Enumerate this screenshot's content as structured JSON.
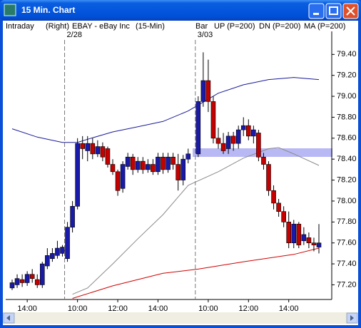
{
  "window": {
    "title": "15 Min. Chart"
  },
  "header": {
    "mode": "Intraday",
    "axis_side": "(Right)",
    "symbol": "EBAY - eBay Inc",
    "interval": "(15-Min)",
    "style": "Bar"
  },
  "chart_data": {
    "type": "candlestick",
    "dates": [
      {
        "value": 11,
        "label": "2/28"
      },
      {
        "value": 36,
        "label": "3/03"
      }
    ],
    "up_color": "#1a1aa8",
    "down_color": "#c40000",
    "candles": [
      [
        77.17,
        77.25,
        77.15,
        77.22
      ],
      [
        77.2,
        77.3,
        77.17,
        77.26
      ],
      [
        77.25,
        77.3,
        77.18,
        77.22
      ],
      [
        77.22,
        77.33,
        77.19,
        77.3
      ],
      [
        77.3,
        77.35,
        77.22,
        77.26
      ],
      [
        77.25,
        77.3,
        77.17,
        77.2
      ],
      [
        77.2,
        77.42,
        77.17,
        77.4
      ],
      [
        77.38,
        77.55,
        77.35,
        77.48
      ],
      [
        77.45,
        77.55,
        77.42,
        77.5
      ],
      [
        77.48,
        77.62,
        77.45,
        77.55
      ],
      [
        77.5,
        77.58,
        77.47,
        77.56
      ],
      [
        77.45,
        77.8,
        77.42,
        77.75
      ],
      [
        77.75,
        78.0,
        77.7,
        77.95
      ],
      [
        77.95,
        78.6,
        77.92,
        78.55
      ],
      [
        78.55,
        78.62,
        78.4,
        78.5
      ],
      [
        78.48,
        78.62,
        78.38,
        78.55
      ],
      [
        78.55,
        78.6,
        78.4,
        78.45
      ],
      [
        78.45,
        78.58,
        78.42,
        78.52
      ],
      [
        78.52,
        78.56,
        78.38,
        78.42
      ],
      [
        78.5,
        78.52,
        78.32,
        78.35
      ],
      [
        78.35,
        78.4,
        78.25,
        78.28
      ],
      [
        78.28,
        78.3,
        78.05,
        78.1
      ],
      [
        78.12,
        78.38,
        78.08,
        78.35
      ],
      [
        78.33,
        78.46,
        78.3,
        78.42
      ],
      [
        78.42,
        78.45,
        78.25,
        78.3
      ],
      [
        78.3,
        78.42,
        78.27,
        78.38
      ],
      [
        78.38,
        78.42,
        78.26,
        78.3
      ],
      [
        78.3,
        78.4,
        78.27,
        78.35
      ],
      [
        78.35,
        78.4,
        78.25,
        78.28
      ],
      [
        78.28,
        78.46,
        78.25,
        78.42
      ],
      [
        78.42,
        78.46,
        78.26,
        78.3
      ],
      [
        78.3,
        78.46,
        78.27,
        78.42
      ],
      [
        78.42,
        78.46,
        78.3,
        78.35
      ],
      [
        78.35,
        78.45,
        78.1,
        78.2
      ],
      [
        78.2,
        78.44,
        78.15,
        78.4
      ],
      [
        78.4,
        78.5,
        78.36,
        78.45
      ],
      [
        78.45,
        79.0,
        78.42,
        78.95
      ],
      [
        78.95,
        79.42,
        78.9,
        79.15
      ],
      [
        79.15,
        79.35,
        78.85,
        78.95
      ],
      [
        78.95,
        79.0,
        78.55,
        78.6
      ],
      [
        78.6,
        78.7,
        78.5,
        78.55
      ],
      [
        78.55,
        78.65,
        78.45,
        78.48
      ],
      [
        78.5,
        78.66,
        78.45,
        78.62
      ],
      [
        78.62,
        78.66,
        78.48,
        78.55
      ],
      [
        78.55,
        78.72,
        78.5,
        78.68
      ],
      [
        78.68,
        78.8,
        78.62,
        78.72
      ],
      [
        78.72,
        78.78,
        78.58,
        78.62
      ],
      [
        78.62,
        78.72,
        78.55,
        78.68
      ],
      [
        78.65,
        78.68,
        78.38,
        78.42
      ],
      [
        78.42,
        78.46,
        78.3,
        78.35
      ],
      [
        78.35,
        78.38,
        78.05,
        78.1
      ],
      [
        78.1,
        78.15,
        77.92,
        77.98
      ],
      [
        77.98,
        78.02,
        77.85,
        77.9
      ],
      [
        77.9,
        77.95,
        77.75,
        77.8
      ],
      [
        77.8,
        77.9,
        77.55,
        77.6
      ],
      [
        77.6,
        77.82,
        77.55,
        77.78
      ],
      [
        77.78,
        77.8,
        77.55,
        77.58
      ],
      [
        77.62,
        77.75,
        77.58,
        77.68
      ],
      [
        77.65,
        77.7,
        77.55,
        77.6
      ],
      [
        77.6,
        77.65,
        77.52,
        77.58
      ],
      [
        77.56,
        77.78,
        77.5,
        77.6
      ]
    ],
    "series": [
      {
        "name": "UP (P=200)",
        "color": "#1a1a9a",
        "x": [
          0,
          5,
          10,
          13,
          15,
          20,
          25,
          30,
          35,
          40,
          45,
          50,
          55,
          60
        ],
        "values": [
          78.69,
          78.61,
          78.56,
          78.56,
          78.59,
          78.66,
          78.71,
          78.76,
          78.86,
          79.03,
          79.11,
          79.16,
          79.18,
          79.16
        ]
      },
      {
        "name": "DN (P=200)",
        "color": "#8a8a8a",
        "x": [
          12,
          15,
          20,
          25,
          30,
          35,
          40,
          45,
          50,
          52,
          55,
          60
        ],
        "values": [
          77.11,
          77.17,
          77.4,
          77.64,
          77.87,
          78.15,
          78.28,
          78.41,
          78.5,
          78.51,
          78.45,
          78.34
        ]
      },
      {
        "name": "MA (P=200)",
        "color": "#d00000",
        "x": [
          12,
          20,
          30,
          36,
          45,
          55,
          60
        ],
        "values": [
          77.07,
          77.19,
          77.31,
          77.35,
          77.42,
          77.49,
          77.55
        ]
      }
    ],
    "ylim": [
      77.06,
      79.62
    ],
    "yticks": [
      {
        "value": 77.2,
        "label": "77.20"
      },
      {
        "value": 77.4,
        "label": "77.40"
      },
      {
        "value": 77.6,
        "label": "77.60"
      },
      {
        "value": 77.8,
        "label": "77.80"
      },
      {
        "value": 78.0,
        "label": "78.00"
      },
      {
        "value": 78.2,
        "label": "78.20"
      },
      {
        "value": 78.4,
        "label": "78.40"
      },
      {
        "value": 78.6,
        "label": "78.60"
      },
      {
        "value": 78.8,
        "label": "78.80"
      },
      {
        "value": 79.0,
        "label": "79.00"
      },
      {
        "value": 79.2,
        "label": "79.20"
      },
      {
        "value": 79.4,
        "label": "79.40"
      }
    ],
    "xticks": [
      {
        "value": 3,
        "label": "14:00"
      },
      {
        "value": 13,
        "label": "10:00"
      },
      {
        "value": 21,
        "label": "12:00"
      },
      {
        "value": 29,
        "label": "14:00"
      },
      {
        "value": 38,
        "label": "10:00"
      },
      {
        "value": 46,
        "label": "12:00"
      },
      {
        "value": 54,
        "label": "14:00"
      }
    ]
  }
}
